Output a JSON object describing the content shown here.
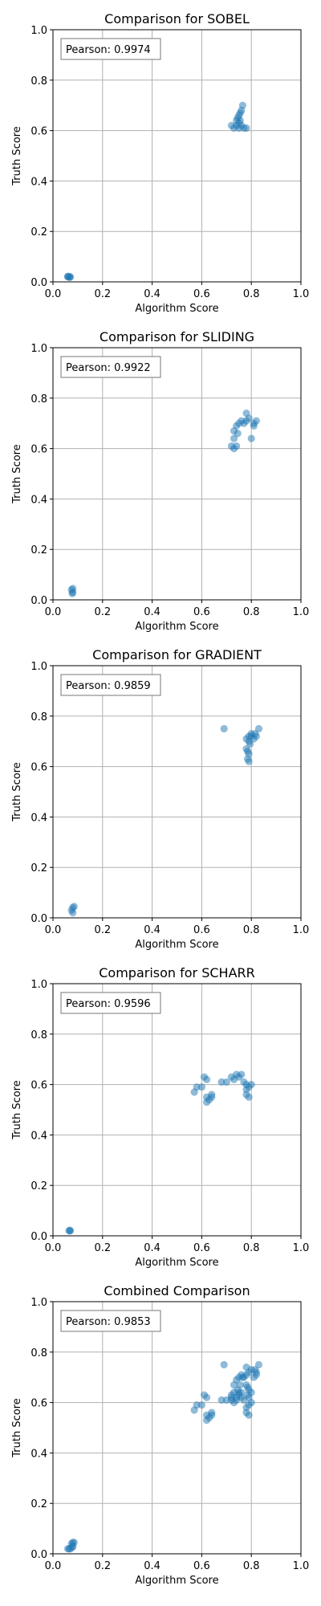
{
  "figure": {
    "background": "#ffffff",
    "point_color": "#1f77b4"
  },
  "chart_data": [
    {
      "type": "scatter",
      "title": "Comparison for SOBEL",
      "xlabel": "Algorithm Score",
      "ylabel": "Truth Score",
      "xlim": [
        0,
        1
      ],
      "ylim": [
        0,
        1
      ],
      "xticks": [
        "0.0",
        "0.2",
        "0.4",
        "0.6",
        "0.8",
        "1.0"
      ],
      "yticks": [
        "0.0",
        "0.2",
        "0.4",
        "0.6",
        "0.8",
        "1.0"
      ],
      "grid": true,
      "annotation": "Pearson: 0.9974",
      "points": [
        [
          0.06,
          0.02
        ],
        [
          0.065,
          0.02
        ],
        [
          0.07,
          0.02
        ],
        [
          0.06,
          0.022
        ],
        [
          0.068,
          0.018
        ],
        [
          0.72,
          0.62
        ],
        [
          0.73,
          0.61
        ],
        [
          0.74,
          0.62
        ],
        [
          0.75,
          0.63
        ],
        [
          0.745,
          0.65
        ],
        [
          0.75,
          0.66
        ],
        [
          0.755,
          0.67
        ],
        [
          0.76,
          0.68
        ],
        [
          0.765,
          0.7
        ],
        [
          0.76,
          0.62
        ],
        [
          0.77,
          0.61
        ],
        [
          0.78,
          0.61
        ],
        [
          0.74,
          0.64
        ],
        [
          0.75,
          0.61
        ],
        [
          0.755,
          0.64
        ]
      ]
    },
    {
      "type": "scatter",
      "title": "Comparison for SLIDING",
      "xlabel": "Algorithm Score",
      "ylabel": "Truth Score",
      "xlim": [
        0,
        1
      ],
      "ylim": [
        0,
        1
      ],
      "xticks": [
        "0.0",
        "0.2",
        "0.4",
        "0.6",
        "0.8",
        "1.0"
      ],
      "yticks": [
        "0.0",
        "0.2",
        "0.4",
        "0.6",
        "0.8",
        "1.0"
      ],
      "grid": true,
      "annotation": "Pearson: 0.9922",
      "points": [
        [
          0.075,
          0.04
        ],
        [
          0.08,
          0.045
        ],
        [
          0.078,
          0.025
        ],
        [
          0.08,
          0.03
        ],
        [
          0.72,
          0.61
        ],
        [
          0.73,
          0.6
        ],
        [
          0.73,
          0.64
        ],
        [
          0.73,
          0.67
        ],
        [
          0.74,
          0.69
        ],
        [
          0.74,
          0.61
        ],
        [
          0.75,
          0.7
        ],
        [
          0.76,
          0.71
        ],
        [
          0.77,
          0.7
        ],
        [
          0.78,
          0.74
        ],
        [
          0.78,
          0.71
        ],
        [
          0.79,
          0.72
        ],
        [
          0.8,
          0.64
        ],
        [
          0.81,
          0.7
        ],
        [
          0.82,
          0.71
        ],
        [
          0.81,
          0.69
        ],
        [
          0.745,
          0.66
        ]
      ]
    },
    {
      "type": "scatter",
      "title": "Comparison for GRADIENT",
      "xlabel": "Algorithm Score",
      "ylabel": "Truth Score",
      "xlim": [
        0,
        1
      ],
      "ylim": [
        0,
        1
      ],
      "xticks": [
        "0.0",
        "0.2",
        "0.4",
        "0.6",
        "0.8",
        "1.0"
      ],
      "yticks": [
        "0.0",
        "0.2",
        "0.4",
        "0.6",
        "0.8",
        "1.0"
      ],
      "grid": true,
      "annotation": "Pearson: 0.9859",
      "points": [
        [
          0.075,
          0.03
        ],
        [
          0.08,
          0.04
        ],
        [
          0.085,
          0.045
        ],
        [
          0.08,
          0.02
        ],
        [
          0.69,
          0.75
        ],
        [
          0.78,
          0.71
        ],
        [
          0.79,
          0.72
        ],
        [
          0.8,
          0.73
        ],
        [
          0.79,
          0.7
        ],
        [
          0.78,
          0.67
        ],
        [
          0.785,
          0.66
        ],
        [
          0.79,
          0.65
        ],
        [
          0.785,
          0.63
        ],
        [
          0.79,
          0.62
        ],
        [
          0.8,
          0.72
        ],
        [
          0.81,
          0.71
        ],
        [
          0.82,
          0.72
        ],
        [
          0.83,
          0.75
        ],
        [
          0.815,
          0.73
        ],
        [
          0.795,
          0.69
        ]
      ]
    },
    {
      "type": "scatter",
      "title": "Comparison for SCHARR",
      "xlabel": "Algorithm Score",
      "ylabel": "Truth Score",
      "xlim": [
        0,
        1
      ],
      "ylim": [
        0,
        1
      ],
      "xticks": [
        "0.0",
        "0.2",
        "0.4",
        "0.6",
        "0.8",
        "1.0"
      ],
      "yticks": [
        "0.0",
        "0.2",
        "0.4",
        "0.6",
        "0.8",
        "1.0"
      ],
      "grid": true,
      "annotation": "Pearson: 0.9596",
      "points": [
        [
          0.065,
          0.02
        ],
        [
          0.07,
          0.02
        ],
        [
          0.068,
          0.022
        ],
        [
          0.57,
          0.57
        ],
        [
          0.58,
          0.59
        ],
        [
          0.6,
          0.59
        ],
        [
          0.62,
          0.62
        ],
        [
          0.61,
          0.63
        ],
        [
          0.62,
          0.53
        ],
        [
          0.62,
          0.55
        ],
        [
          0.63,
          0.54
        ],
        [
          0.64,
          0.55
        ],
        [
          0.64,
          0.56
        ],
        [
          0.68,
          0.61
        ],
        [
          0.7,
          0.61
        ],
        [
          0.72,
          0.63
        ],
        [
          0.73,
          0.62
        ],
        [
          0.74,
          0.64
        ],
        [
          0.75,
          0.63
        ],
        [
          0.76,
          0.64
        ],
        [
          0.77,
          0.61
        ],
        [
          0.78,
          0.6
        ],
        [
          0.78,
          0.58
        ],
        [
          0.78,
          0.56
        ],
        [
          0.79,
          0.55
        ],
        [
          0.79,
          0.59
        ],
        [
          0.8,
          0.6
        ]
      ]
    },
    {
      "type": "scatter",
      "title": "Combined Comparison",
      "xlabel": "Algorithm Score",
      "ylabel": "Truth Score",
      "xlim": [
        0,
        1
      ],
      "ylim": [
        0,
        1
      ],
      "xticks": [
        "0.0",
        "0.2",
        "0.4",
        "0.6",
        "0.8",
        "1.0"
      ],
      "yticks": [
        "0.0",
        "0.2",
        "0.4",
        "0.6",
        "0.8",
        "1.0"
      ],
      "grid": true,
      "annotation": "Pearson: 0.9853",
      "points": [
        [
          0.06,
          0.02
        ],
        [
          0.065,
          0.02
        ],
        [
          0.07,
          0.02
        ],
        [
          0.075,
          0.04
        ],
        [
          0.08,
          0.045
        ],
        [
          0.078,
          0.025
        ],
        [
          0.085,
          0.045
        ],
        [
          0.08,
          0.03
        ],
        [
          0.57,
          0.57
        ],
        [
          0.58,
          0.59
        ],
        [
          0.6,
          0.59
        ],
        [
          0.62,
          0.62
        ],
        [
          0.61,
          0.63
        ],
        [
          0.62,
          0.53
        ],
        [
          0.62,
          0.55
        ],
        [
          0.63,
          0.54
        ],
        [
          0.64,
          0.55
        ],
        [
          0.64,
          0.56
        ],
        [
          0.68,
          0.61
        ],
        [
          0.69,
          0.75
        ],
        [
          0.7,
          0.61
        ],
        [
          0.72,
          0.62
        ],
        [
          0.72,
          0.61
        ],
        [
          0.73,
          0.6
        ],
        [
          0.73,
          0.64
        ],
        [
          0.73,
          0.67
        ],
        [
          0.74,
          0.69
        ],
        [
          0.74,
          0.61
        ],
        [
          0.74,
          0.62
        ],
        [
          0.745,
          0.65
        ],
        [
          0.75,
          0.7
        ],
        [
          0.75,
          0.63
        ],
        [
          0.755,
          0.67
        ],
        [
          0.76,
          0.71
        ],
        [
          0.765,
          0.7
        ],
        [
          0.76,
          0.62
        ],
        [
          0.77,
          0.61
        ],
        [
          0.77,
          0.7
        ],
        [
          0.78,
          0.74
        ],
        [
          0.78,
          0.71
        ],
        [
          0.78,
          0.67
        ],
        [
          0.785,
          0.66
        ],
        [
          0.79,
          0.65
        ],
        [
          0.785,
          0.63
        ],
        [
          0.79,
          0.62
        ],
        [
          0.79,
          0.72
        ],
        [
          0.8,
          0.73
        ],
        [
          0.8,
          0.64
        ],
        [
          0.78,
          0.58
        ],
        [
          0.78,
          0.56
        ],
        [
          0.79,
          0.55
        ],
        [
          0.79,
          0.59
        ],
        [
          0.8,
          0.6
        ],
        [
          0.81,
          0.7
        ],
        [
          0.82,
          0.71
        ],
        [
          0.82,
          0.72
        ],
        [
          0.83,
          0.75
        ],
        [
          0.815,
          0.73
        ],
        [
          0.75,
          0.64
        ],
        [
          0.76,
          0.64
        ],
        [
          0.72,
          0.63
        ]
      ]
    }
  ]
}
